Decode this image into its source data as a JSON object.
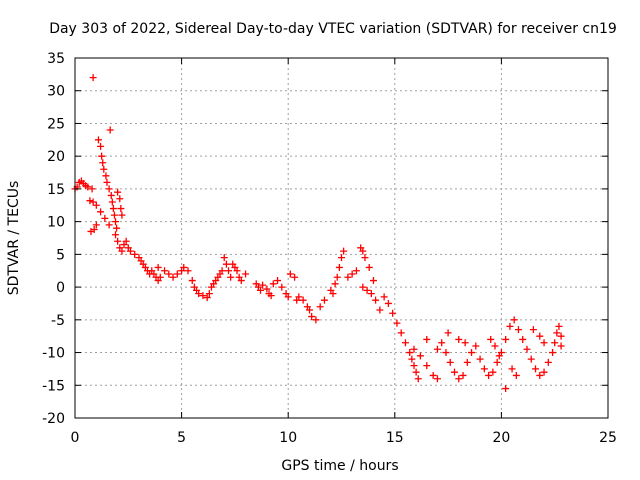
{
  "chart_data": {
    "type": "scatter",
    "title": "Day 303 of 2022, Sidereal Day-to-day VTEC variation (SDTVAR) for receiver cn19",
    "xlabel": "GPS time / hours",
    "ylabel": "SDTVAR / TECUs",
    "xlim": [
      0,
      25
    ],
    "ylim": [
      -20,
      35
    ],
    "xticks": [
      0,
      5,
      10,
      15,
      20,
      25
    ],
    "xtick_labels": [
      "0",
      "5",
      "10",
      "15",
      "20",
      "25"
    ],
    "yticks": [
      -20,
      -15,
      -10,
      -5,
      0,
      5,
      10,
      15,
      20,
      25,
      30,
      35
    ],
    "ytick_labels": [
      "-20",
      "-15",
      "-10",
      "-5",
      "0",
      "5",
      "10",
      "15",
      "20",
      "25",
      "30",
      "35"
    ],
    "grid": true,
    "marker": "plus",
    "color": "#ff0000",
    "series": [
      {
        "name": "SDTVAR",
        "points": [
          [
            0.0,
            15.0
          ],
          [
            0.1,
            15.3
          ],
          [
            0.2,
            16.0
          ],
          [
            0.3,
            16.2
          ],
          [
            0.4,
            15.8
          ],
          [
            0.5,
            15.5
          ],
          [
            0.6,
            15.3
          ],
          [
            0.8,
            15.0
          ],
          [
            0.85,
            32.0
          ],
          [
            0.7,
            13.2
          ],
          [
            0.85,
            13.0
          ],
          [
            1.0,
            12.5
          ],
          [
            1.2,
            11.5
          ],
          [
            1.4,
            10.5
          ],
          [
            1.6,
            9.5
          ],
          [
            0.75,
            8.5
          ],
          [
            0.9,
            8.8
          ],
          [
            1.0,
            9.5
          ],
          [
            1.1,
            22.5
          ],
          [
            1.2,
            21.5
          ],
          [
            1.25,
            20.0
          ],
          [
            1.3,
            19.0
          ],
          [
            1.35,
            18.0
          ],
          [
            1.45,
            17.0
          ],
          [
            1.5,
            16.0
          ],
          [
            1.6,
            15.0
          ],
          [
            1.65,
            24.0
          ],
          [
            1.7,
            14.0
          ],
          [
            1.75,
            13.0
          ],
          [
            1.8,
            12.0
          ],
          [
            1.85,
            11.0
          ],
          [
            1.9,
            10.0
          ],
          [
            1.95,
            9.0
          ],
          [
            2.0,
            14.5
          ],
          [
            2.1,
            13.5
          ],
          [
            2.15,
            12.0
          ],
          [
            2.2,
            11.0
          ],
          [
            1.9,
            8.0
          ],
          [
            2.0,
            7.0
          ],
          [
            2.1,
            6.0
          ],
          [
            2.2,
            5.5
          ],
          [
            2.3,
            6.5
          ],
          [
            2.4,
            7.0
          ],
          [
            2.5,
            6.0
          ],
          [
            2.6,
            5.5
          ],
          [
            2.8,
            5.0
          ],
          [
            3.0,
            4.5
          ],
          [
            3.1,
            4.0
          ],
          [
            3.2,
            3.5
          ],
          [
            3.3,
            3.0
          ],
          [
            3.4,
            2.5
          ],
          [
            3.5,
            2.0
          ],
          [
            3.6,
            2.5
          ],
          [
            3.7,
            2.0
          ],
          [
            3.8,
            1.5
          ],
          [
            3.9,
            1.0
          ],
          [
            4.0,
            1.5
          ],
          [
            3.9,
            3.0
          ],
          [
            4.2,
            2.5
          ],
          [
            4.4,
            2.0
          ],
          [
            4.6,
            1.5
          ],
          [
            4.8,
            2.0
          ],
          [
            5.0,
            2.5
          ],
          [
            5.1,
            3.0
          ],
          [
            5.3,
            2.5
          ],
          [
            5.5,
            1.0
          ],
          [
            5.6,
            0.0
          ],
          [
            5.7,
            -0.5
          ],
          [
            5.8,
            -1.0
          ],
          [
            6.0,
            -1.3
          ],
          [
            6.2,
            -1.6
          ],
          [
            6.3,
            -1.0
          ],
          [
            6.4,
            0.0
          ],
          [
            6.5,
            0.5
          ],
          [
            6.6,
            1.0
          ],
          [
            6.7,
            1.5
          ],
          [
            6.8,
            2.0
          ],
          [
            6.9,
            2.5
          ],
          [
            7.0,
            4.5
          ],
          [
            7.1,
            3.5
          ],
          [
            7.2,
            2.5
          ],
          [
            7.3,
            1.5
          ],
          [
            7.4,
            3.5
          ],
          [
            7.5,
            3.0
          ],
          [
            7.6,
            2.5
          ],
          [
            7.7,
            1.5
          ],
          [
            7.8,
            1.0
          ],
          [
            8.0,
            2.0
          ],
          [
            8.5,
            0.5
          ],
          [
            8.6,
            0.0
          ],
          [
            8.7,
            -0.5
          ],
          [
            8.8,
            0.3
          ],
          [
            9.0,
            -0.3
          ],
          [
            9.1,
            -1.0
          ],
          [
            9.2,
            -1.3
          ],
          [
            9.3,
            0.5
          ],
          [
            9.5,
            1.0
          ],
          [
            9.7,
            0.0
          ],
          [
            9.9,
            -1.0
          ],
          [
            10.0,
            -1.5
          ],
          [
            10.1,
            2.0
          ],
          [
            10.3,
            1.5
          ],
          [
            10.4,
            -2.0
          ],
          [
            10.5,
            -1.5
          ],
          [
            10.7,
            -2.0
          ],
          [
            10.9,
            -3.0
          ],
          [
            11.0,
            -3.5
          ],
          [
            11.1,
            -4.5
          ],
          [
            11.3,
            -5.0
          ],
          [
            11.5,
            -3.0
          ],
          [
            11.7,
            -2.0
          ],
          [
            12.0,
            -0.5
          ],
          [
            12.1,
            -1.0
          ],
          [
            12.2,
            0.5
          ],
          [
            12.3,
            1.5
          ],
          [
            12.4,
            3.0
          ],
          [
            12.5,
            4.5
          ],
          [
            12.6,
            5.5
          ],
          [
            12.8,
            1.5
          ],
          [
            13.0,
            2.0
          ],
          [
            13.2,
            2.5
          ],
          [
            13.4,
            6.0
          ],
          [
            13.5,
            5.5
          ],
          [
            13.6,
            4.5
          ],
          [
            13.8,
            3.0
          ],
          [
            14.0,
            1.0
          ],
          [
            13.5,
            0.0
          ],
          [
            13.7,
            -0.5
          ],
          [
            13.9,
            -1.0
          ],
          [
            14.1,
            -2.0
          ],
          [
            14.3,
            -3.5
          ],
          [
            14.5,
            -1.5
          ],
          [
            14.7,
            -2.5
          ],
          [
            14.9,
            -4.0
          ],
          [
            15.1,
            -5.5
          ],
          [
            15.3,
            -7.0
          ],
          [
            15.5,
            -8.5
          ],
          [
            15.7,
            -10.0
          ],
          [
            15.9,
            -12.0
          ],
          [
            16.0,
            -13.0
          ],
          [
            16.1,
            -14.0
          ],
          [
            15.9,
            -9.5
          ],
          [
            16.2,
            -10.5
          ],
          [
            16.5,
            -12.0
          ],
          [
            16.8,
            -13.5
          ],
          [
            17.0,
            -14.0
          ],
          [
            17.0,
            -9.5
          ],
          [
            17.2,
            -8.5
          ],
          [
            17.4,
            -10.0
          ],
          [
            17.6,
            -11.5
          ],
          [
            17.8,
            -13.0
          ],
          [
            18.0,
            -14.0
          ],
          [
            18.2,
            -13.5
          ],
          [
            18.4,
            -11.5
          ],
          [
            18.6,
            -10.0
          ],
          [
            18.8,
            -9.0
          ],
          [
            18.0,
            -8.0
          ],
          [
            18.3,
            -8.5
          ],
          [
            19.0,
            -11.0
          ],
          [
            19.2,
            -12.5
          ],
          [
            19.4,
            -13.5
          ],
          [
            19.6,
            -13.0
          ],
          [
            19.8,
            -11.5
          ],
          [
            20.0,
            -10.0
          ],
          [
            20.2,
            -8.0
          ],
          [
            20.4,
            -6.0
          ],
          [
            20.6,
            -5.0
          ],
          [
            20.8,
            -6.5
          ],
          [
            21.0,
            -8.0
          ],
          [
            21.2,
            -9.5
          ],
          [
            21.4,
            -11.0
          ],
          [
            21.6,
            -12.5
          ],
          [
            21.8,
            -13.5
          ],
          [
            22.0,
            -13.0
          ],
          [
            22.2,
            -11.5
          ],
          [
            22.4,
            -10.0
          ],
          [
            22.5,
            -8.5
          ],
          [
            22.6,
            -7.0
          ],
          [
            22.7,
            -6.0
          ],
          [
            22.8,
            -7.5
          ],
          [
            22.8,
            -9.0
          ],
          [
            20.2,
            -15.5
          ],
          [
            21.5,
            -6.5
          ],
          [
            21.8,
            -7.5
          ],
          [
            22.0,
            -8.5
          ],
          [
            19.5,
            -8.0
          ],
          [
            19.7,
            -9.0
          ],
          [
            19.9,
            -10.5
          ],
          [
            20.5,
            -12.5
          ],
          [
            20.7,
            -13.5
          ],
          [
            17.5,
            -7.0
          ],
          [
            16.5,
            -8.0
          ],
          [
            15.8,
            -11.0
          ]
        ]
      }
    ]
  }
}
